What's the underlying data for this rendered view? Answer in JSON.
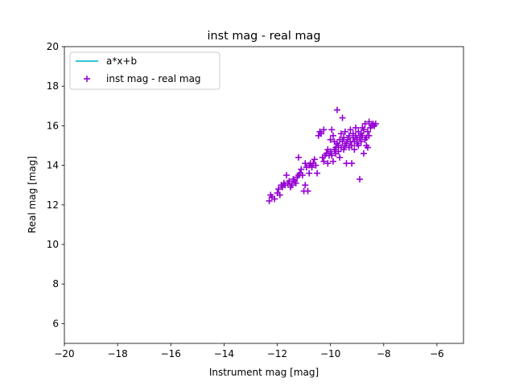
{
  "chart_data": {
    "type": "scatter",
    "title": "inst mag - real mag",
    "xlabel": "Instrument mag [mag]",
    "ylabel": "Real mag [mag]",
    "xlim": [
      -20,
      -5
    ],
    "ylim": [
      5,
      20
    ],
    "xticks": [
      -20,
      -18,
      -16,
      -14,
      -12,
      -10,
      -8,
      -6
    ],
    "yticks": [
      6,
      8,
      10,
      12,
      14,
      16,
      18,
      20
    ],
    "xtick_labels": [
      "−20",
      "−18",
      "−16",
      "−14",
      "−12",
      "−10",
      "−8",
      "−6"
    ],
    "ytick_labels": [
      "6",
      "8",
      "10",
      "12",
      "14",
      "16",
      "18",
      "20"
    ],
    "grid": false,
    "legend_position": "top-left",
    "legend": [
      {
        "label": "a*x+b",
        "kind": "line",
        "color": "#17becf"
      },
      {
        "label": "inst mag - real mag",
        "kind": "marker",
        "color": "#9400d3"
      }
    ],
    "series": [
      {
        "name": "inst mag - real mag",
        "marker": "plus",
        "color": "#9400d3",
        "points": [
          [
            -12.3,
            12.2
          ],
          [
            -12.25,
            12.5
          ],
          [
            -12.2,
            12.4
          ],
          [
            -12.1,
            12.3
          ],
          [
            -12.0,
            12.6
          ],
          [
            -11.95,
            12.8
          ],
          [
            -11.9,
            12.5
          ],
          [
            -11.85,
            13.0
          ],
          [
            -11.8,
            12.9
          ],
          [
            -11.75,
            13.1
          ],
          [
            -11.7,
            13.0
          ],
          [
            -11.65,
            13.5
          ],
          [
            -11.6,
            13.1
          ],
          [
            -11.55,
            13.2
          ],
          [
            -11.5,
            12.9
          ],
          [
            -11.45,
            13.0
          ],
          [
            -11.4,
            13.3
          ],
          [
            -11.35,
            13.2
          ],
          [
            -11.3,
            13.1
          ],
          [
            -11.25,
            13.4
          ],
          [
            -11.2,
            14.4
          ],
          [
            -11.2,
            13.5
          ],
          [
            -11.15,
            13.6
          ],
          [
            -11.1,
            13.8
          ],
          [
            -11.05,
            13.5
          ],
          [
            -11.0,
            12.7
          ],
          [
            -10.95,
            13.0
          ],
          [
            -10.95,
            14.1
          ],
          [
            -10.9,
            13.9
          ],
          [
            -10.85,
            12.7
          ],
          [
            -10.8,
            13.6
          ],
          [
            -10.8,
            14.0
          ],
          [
            -10.75,
            14.1
          ],
          [
            -10.7,
            13.9
          ],
          [
            -10.65,
            14.1
          ],
          [
            -10.6,
            14.3
          ],
          [
            -10.55,
            14.0
          ],
          [
            -10.5,
            13.6
          ],
          [
            -10.45,
            15.5
          ],
          [
            -10.4,
            15.7
          ],
          [
            -10.35,
            15.6
          ],
          [
            -10.3,
            14.4
          ],
          [
            -10.25,
            14.2
          ],
          [
            -10.25,
            15.8
          ],
          [
            -10.2,
            14.5
          ],
          [
            -10.15,
            14.6
          ],
          [
            -10.1,
            14.1
          ],
          [
            -10.1,
            14.8
          ],
          [
            -10.05,
            14.5
          ],
          [
            -10.0,
            14.7
          ],
          [
            -10.0,
            15.3
          ],
          [
            -9.95,
            14.5
          ],
          [
            -9.95,
            15.8
          ],
          [
            -9.9,
            15.5
          ],
          [
            -9.9,
            14.2
          ],
          [
            -9.85,
            14.8
          ],
          [
            -9.85,
            15.2
          ],
          [
            -9.8,
            14.6
          ],
          [
            -9.8,
            14.9
          ],
          [
            -9.75,
            15.1
          ],
          [
            -9.75,
            16.8
          ],
          [
            -9.7,
            14.7
          ],
          [
            -9.7,
            15.0
          ],
          [
            -9.65,
            15.3
          ],
          [
            -9.65,
            14.4
          ],
          [
            -9.6,
            15.6
          ],
          [
            -9.6,
            14.9
          ],
          [
            -9.55,
            16.4
          ],
          [
            -9.55,
            15.2
          ],
          [
            -9.5,
            15.4
          ],
          [
            -9.5,
            14.8
          ],
          [
            -9.45,
            15.0
          ],
          [
            -9.45,
            15.7
          ],
          [
            -9.4,
            14.1
          ],
          [
            -9.4,
            15.1
          ],
          [
            -9.35,
            15.3
          ],
          [
            -9.3,
            15.5
          ],
          [
            -9.3,
            14.9
          ],
          [
            -9.25,
            15.8
          ],
          [
            -9.25,
            15.2
          ],
          [
            -9.2,
            14.1
          ],
          [
            -9.2,
            15.0
          ],
          [
            -9.15,
            15.4
          ],
          [
            -9.15,
            15.6
          ],
          [
            -9.1,
            15.2
          ],
          [
            -9.1,
            14.8
          ],
          [
            -9.05,
            15.9
          ],
          [
            -9.05,
            15.5
          ],
          [
            -9.0,
            15.1
          ],
          [
            -9.0,
            15.3
          ],
          [
            -8.95,
            15.7
          ],
          [
            -8.95,
            15.0
          ],
          [
            -8.9,
            13.3
          ],
          [
            -8.9,
            15.4
          ],
          [
            -8.85,
            15.6
          ],
          [
            -8.85,
            15.2
          ],
          [
            -8.8,
            15.9
          ],
          [
            -8.8,
            15.5
          ],
          [
            -8.75,
            14.6
          ],
          [
            -8.75,
            15.8
          ],
          [
            -8.7,
            15.3
          ],
          [
            -8.7,
            16.1
          ],
          [
            -8.65,
            15.4
          ],
          [
            -8.65,
            15.0
          ],
          [
            -8.6,
            14.9
          ],
          [
            -8.6,
            15.7
          ],
          [
            -8.55,
            16.2
          ],
          [
            -8.55,
            15.5
          ],
          [
            -8.5,
            15.9
          ],
          [
            -8.45,
            16.0
          ],
          [
            -8.4,
            16.1
          ],
          [
            -8.35,
            16.0
          ],
          [
            -8.3,
            16.1
          ]
        ]
      }
    ],
    "fit_line": {
      "name": "a*x+b",
      "color": "#17becf",
      "visible": false
    }
  }
}
